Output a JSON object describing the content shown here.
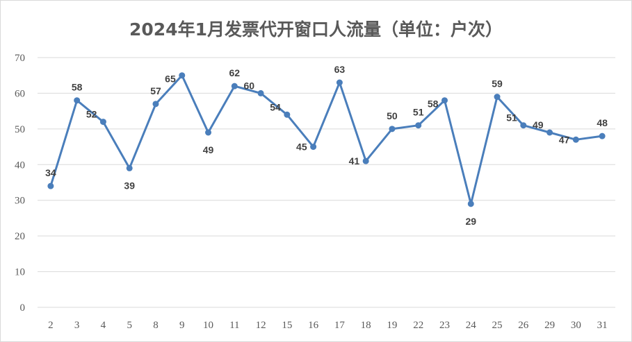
{
  "chart_data": {
    "type": "line",
    "title": "2024年1月发票代开窗口人流量（单位：户次）",
    "xlabel": "",
    "ylabel": "",
    "categories": [
      "2",
      "3",
      "4",
      "5",
      "8",
      "9",
      "10",
      "11",
      "12",
      "15",
      "16",
      "17",
      "18",
      "19",
      "22",
      "23",
      "24",
      "25",
      "26",
      "29",
      "30",
      "31"
    ],
    "series": [
      {
        "values": [
          34,
          58,
          52,
          39,
          57,
          65,
          49,
          62,
          60,
          54,
          45,
          63,
          41,
          50,
          51,
          58,
          29,
          59,
          51,
          49,
          47,
          48
        ]
      }
    ],
    "ylim": [
      0,
      70
    ],
    "yticks": [
      0,
      10,
      20,
      30,
      40,
      50,
      60,
      70
    ],
    "grid": true,
    "data_labels": true,
    "line_color": "#4a7ebb",
    "grid_color": "#d9d9d9",
    "axis_text_color": "#595959",
    "label_color": "#404040"
  }
}
